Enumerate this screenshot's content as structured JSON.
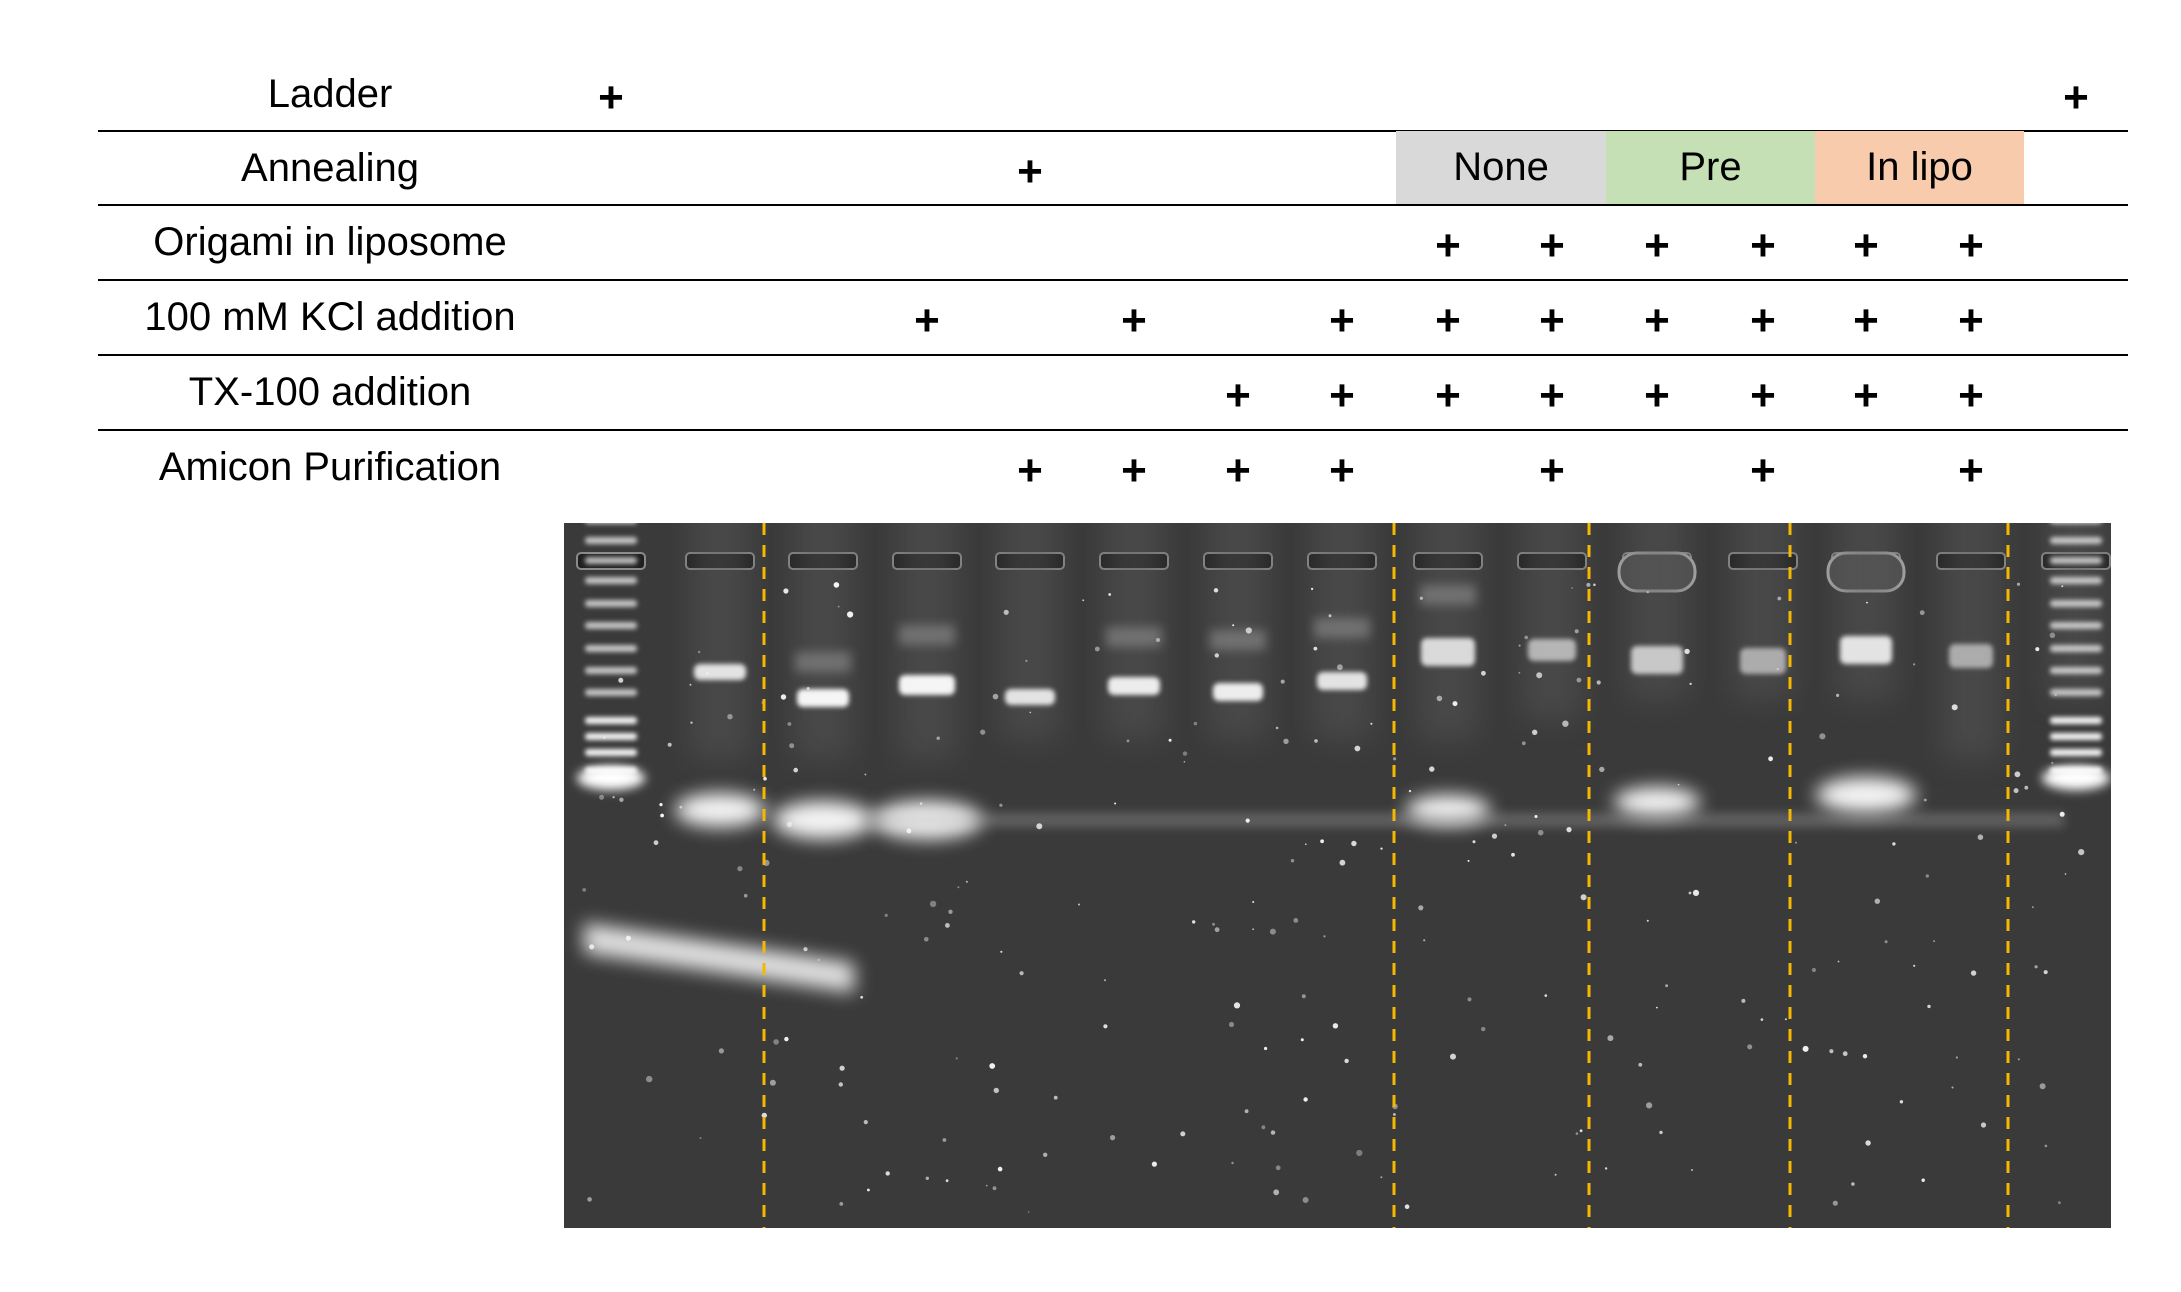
{
  "rows": [
    {
      "label": "Ladder",
      "lanes": [
        1,
        15
      ]
    },
    {
      "label": "Annealing",
      "lanes": [
        5
      ]
    },
    {
      "label": "Origami in liposome",
      "lanes": [
        9,
        10,
        11,
        12,
        13,
        14
      ]
    },
    {
      "label": "100 mM KCl addition",
      "lanes": [
        4,
        6,
        8,
        9,
        10,
        11,
        12,
        13,
        14
      ]
    },
    {
      "label": "TX-100 addition",
      "lanes": [
        7,
        8,
        9,
        10,
        11,
        12,
        13,
        14
      ]
    },
    {
      "label": "Amicon Purification",
      "lanes": [
        5,
        6,
        7,
        8,
        10,
        12,
        14
      ]
    }
  ],
  "plus_symbol": "+",
  "annealing_conditions": [
    {
      "label": "None",
      "color": "#d9d9d9"
    },
    {
      "label": "Pre",
      "color": "#c5e0b4"
    },
    {
      "label": "In lipo",
      "color": "#f8cbad"
    }
  ],
  "gel": {
    "background": "#3a3a3a",
    "divider_color": "#f5b800",
    "lane_count": 15
  }
}
